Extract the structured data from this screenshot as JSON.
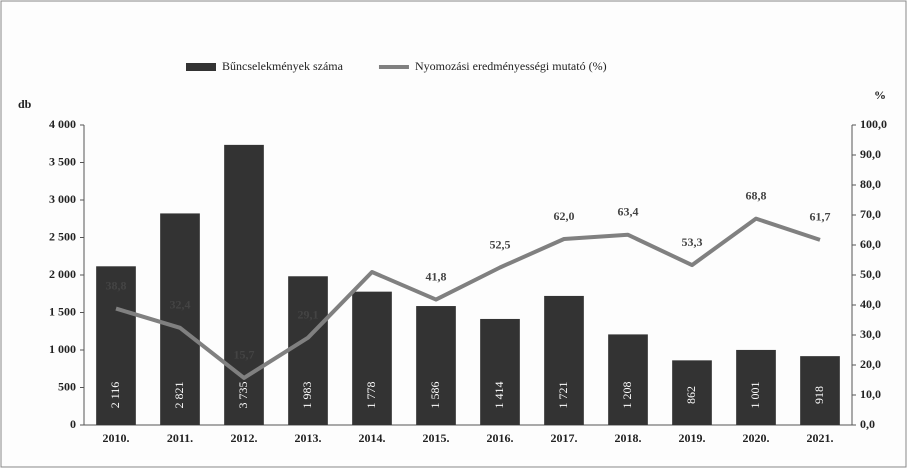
{
  "chart_data": {
    "type": "bar-line",
    "categories": [
      "2010.",
      "2011.",
      "2012.",
      "2013.",
      "2014.",
      "2015.",
      "2016.",
      "2017.",
      "2018.",
      "2019.",
      "2020.",
      "2021."
    ],
    "series": [
      {
        "name": "Bűncselekmények száma",
        "color": "#333333",
        "type": "bar",
        "axis": "y",
        "values": [
          2116,
          2821,
          3735,
          1983,
          1778,
          1586,
          1414,
          1721,
          1208,
          862,
          1001,
          918
        ],
        "value_labels": [
          "2 116",
          "2 821",
          "3 735",
          "1 983",
          "1 778",
          "1 586",
          "1 414",
          "1 721",
          "1 208",
          "862",
          "1 001",
          "918"
        ]
      },
      {
        "name": "Nyomozási eredményességi mutató (%)",
        "color": "#808080",
        "type": "line",
        "axis": "y2",
        "values": [
          38.8,
          32.4,
          15.7,
          29.1,
          51.0,
          41.8,
          52.5,
          62.0,
          63.4,
          53.3,
          68.8,
          61.7
        ],
        "value_labels": [
          "38,8",
          "32,4",
          "15,7",
          "29,1",
          null,
          "41,8",
          "52,5",
          "62,0",
          "63,4",
          "53,3",
          "68,8",
          "61,7"
        ]
      }
    ],
    "ylabel": "db",
    "y2label": "%",
    "ylim": [
      0,
      4000
    ],
    "yticks": [
      0,
      500,
      {
        "value": 1000,
        "label": "1 000"
      },
      {
        "value": 1500,
        "label": "1 500"
      },
      {
        "value": 2000,
        "label": "2 000"
      },
      {
        "value": 2500,
        "label": "2 500"
      },
      {
        "value": 3000,
        "label": "3 000"
      },
      {
        "value": 3500,
        "label": "3 500"
      },
      {
        "value": 4000,
        "label": "4 000"
      }
    ],
    "y2lim": [
      0,
      100
    ],
    "y2ticks": [
      {
        "value": 0,
        "label": "0,0"
      },
      {
        "value": 10,
        "label": "10,0"
      },
      {
        "value": 20,
        "label": "20,0"
      },
      {
        "value": 30,
        "label": "30,0"
      },
      {
        "value": 40,
        "label": "40,0"
      },
      {
        "value": 50,
        "label": "50,0"
      },
      {
        "value": 60,
        "label": "60,0"
      },
      {
        "value": 70,
        "label": "70,0"
      },
      {
        "value": 80,
        "label": "80,0"
      },
      {
        "value": 90,
        "label": "90,0"
      },
      {
        "value": 100,
        "label": "100,0"
      }
    ],
    "grid": false
  }
}
